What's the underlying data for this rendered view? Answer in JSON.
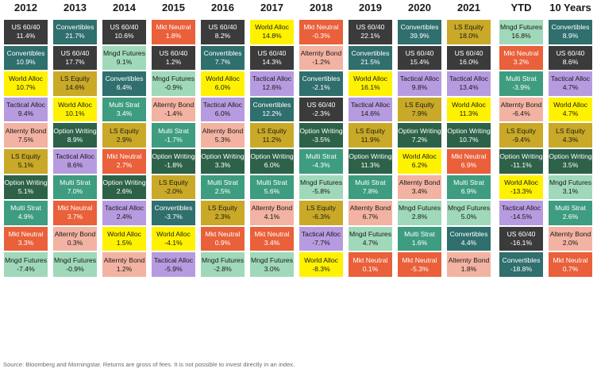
{
  "columns": [
    "2012",
    "2013",
    "2014",
    "2015",
    "2016",
    "2017",
    "2018",
    "2019",
    "2020",
    "2021",
    "YTD",
    "10 Years"
  ],
  "colors": {
    "US 60/40": "#3b3b3b",
    "Convertibles": "#2f6f6d",
    "Mngd Futures": "#9fd9b9",
    "Mkt Neutral": "#e9603a",
    "World Alloc": "#fff200",
    "LS Equity": "#c9a927",
    "Tactical Alloc": "#b79be0",
    "Alternty Bond": "#f3b3a2",
    "Multi Strat": "#3e9c80",
    "Option Writing": "#2d6249"
  },
  "light_text": [
    "US 60/40",
    "Convertibles",
    "Mkt Neutral",
    "Multi Strat",
    "Option Writing"
  ],
  "chart_data": {
    "type": "table",
    "rows_per_column": 10,
    "columns": [
      {
        "year": "2012",
        "cells": [
          {
            "name": "US 60/40",
            "value": "11.4%"
          },
          {
            "name": "Convertibles",
            "value": "10.9%"
          },
          {
            "name": "World Alloc",
            "value": "10.7%"
          },
          {
            "name": "Tactical Alloc",
            "value": "9.4%"
          },
          {
            "name": "Alternty Bond",
            "value": "7.5%"
          },
          {
            "name": "LS Equity",
            "value": "5.1%"
          },
          {
            "name": "Option Writing",
            "value": "5.1%"
          },
          {
            "name": "Multi Strat",
            "value": "4.9%"
          },
          {
            "name": "Mkt Neutral",
            "value": "3.3%"
          },
          {
            "name": "Mngd Futures",
            "value": "-7.4%"
          }
        ]
      },
      {
        "year": "2013",
        "cells": [
          {
            "name": "Convertibles",
            "value": "21.7%"
          },
          {
            "name": "US 60/40",
            "value": "17.7%"
          },
          {
            "name": "LS Equity",
            "value": "14.6%"
          },
          {
            "name": "World Alloc",
            "value": "10.1%"
          },
          {
            "name": "Option Writing",
            "value": "8.9%"
          },
          {
            "name": "Tactical Alloc",
            "value": "8.6%"
          },
          {
            "name": "Multi Strat",
            "value": "7.0%"
          },
          {
            "name": "Mkt Neutral",
            "value": "3.7%"
          },
          {
            "name": "Alternty Bond",
            "value": "0.3%"
          },
          {
            "name": "Mngd Futures",
            "value": "-0.9%"
          }
        ]
      },
      {
        "year": "2014",
        "cells": [
          {
            "name": "US 60/40",
            "value": "10.6%"
          },
          {
            "name": "Mngd Futures",
            "value": "9.1%"
          },
          {
            "name": "Convertibles",
            "value": "6.4%"
          },
          {
            "name": "Multi Strat",
            "value": "3.4%"
          },
          {
            "name": "LS Equity",
            "value": "2.9%"
          },
          {
            "name": "Mkt Neutral",
            "value": "2.7%"
          },
          {
            "name": "Option Writing",
            "value": "2.6%"
          },
          {
            "name": "Tactical Alloc",
            "value": "2.4%"
          },
          {
            "name": "World Alloc",
            "value": "1.5%"
          },
          {
            "name": "Alternty Bond",
            "value": "1.2%"
          }
        ]
      },
      {
        "year": "2015",
        "cells": [
          {
            "name": "Mkt Neutral",
            "value": "1.8%"
          },
          {
            "name": "US 60/40",
            "value": "1.2%"
          },
          {
            "name": "Mngd Futures",
            "value": "-0.9%"
          },
          {
            "name": "Alternty Bond",
            "value": "-1.4%"
          },
          {
            "name": "Multi Strat",
            "value": "-1.7%"
          },
          {
            "name": "Option Writing",
            "value": "-1.8%"
          },
          {
            "name": "LS Equity",
            "value": "-2.0%"
          },
          {
            "name": "Convertibles",
            "value": "-3.7%"
          },
          {
            "name": "World Alloc",
            "value": "-4.1%"
          },
          {
            "name": "Tactical Alloc",
            "value": "-5.9%"
          }
        ]
      },
      {
        "year": "2016",
        "cells": [
          {
            "name": "US 60/40",
            "value": "8.2%"
          },
          {
            "name": "Convertibles",
            "value": "7.7%"
          },
          {
            "name": "World Alloc",
            "value": "6.0%"
          },
          {
            "name": "Tactical Alloc",
            "value": "6.0%"
          },
          {
            "name": "Alternty Bond",
            "value": "5.3%"
          },
          {
            "name": "Option Writing",
            "value": "3.3%"
          },
          {
            "name": "Multi Strat",
            "value": "2.5%"
          },
          {
            "name": "LS Equity",
            "value": "2.3%"
          },
          {
            "name": "Mkt Neutral",
            "value": "0.9%"
          },
          {
            "name": "Mngd Futures",
            "value": "-2.8%"
          }
        ]
      },
      {
        "year": "2017",
        "cells": [
          {
            "name": "World Alloc",
            "value": "14.8%"
          },
          {
            "name": "US 60/40",
            "value": "14.3%"
          },
          {
            "name": "Tactical Alloc",
            "value": "12.6%"
          },
          {
            "name": "Convertibles",
            "value": "12.2%"
          },
          {
            "name": "LS Equity",
            "value": "11.2%"
          },
          {
            "name": "Option Writing",
            "value": "6.0%"
          },
          {
            "name": "Multi Strat",
            "value": "5.6%"
          },
          {
            "name": "Alternty Bond",
            "value": "4.1%"
          },
          {
            "name": "Mkt Neutral",
            "value": "3.4%"
          },
          {
            "name": "Mngd Futures",
            "value": "3.0%"
          }
        ]
      },
      {
        "year": "2018",
        "cells": [
          {
            "name": "Mkt Neutral",
            "value": "-0.3%"
          },
          {
            "name": "Alternty Bond",
            "value": "-1.2%"
          },
          {
            "name": "Convertibles",
            "value": "-2.1%"
          },
          {
            "name": "US 60/40",
            "value": "-2.3%"
          },
          {
            "name": "Option Writing",
            "value": "-3.5%"
          },
          {
            "name": "Multi Strat",
            "value": "-4.3%"
          },
          {
            "name": "Mngd Futures",
            "value": "-5.8%"
          },
          {
            "name": "LS Equity",
            "value": "-6.3%"
          },
          {
            "name": "Tactical Alloc",
            "value": "-7.7%"
          },
          {
            "name": "World Alloc",
            "value": "-8.3%"
          }
        ]
      },
      {
        "year": "2019",
        "cells": [
          {
            "name": "US 60/40",
            "value": "22.1%"
          },
          {
            "name": "Convertibles",
            "value": "21.5%"
          },
          {
            "name": "World Alloc",
            "value": "16.1%"
          },
          {
            "name": "Tactical Alloc",
            "value": "14.6%"
          },
          {
            "name": "LS Equity",
            "value": "11.9%"
          },
          {
            "name": "Option Writing",
            "value": "11.3%"
          },
          {
            "name": "Multi Strat",
            "value": "7.8%"
          },
          {
            "name": "Alternty Bond",
            "value": "6.7%"
          },
          {
            "name": "Mngd Futures",
            "value": "4.7%"
          },
          {
            "name": "Mkt Neutral",
            "value": "0.1%"
          }
        ]
      },
      {
        "year": "2020",
        "cells": [
          {
            "name": "Convertibles",
            "value": "39.9%"
          },
          {
            "name": "US 60/40",
            "value": "15.4%"
          },
          {
            "name": "Tactical Alloc",
            "value": "9.8%"
          },
          {
            "name": "LS Equity",
            "value": "7.9%"
          },
          {
            "name": "Option Writing",
            "value": "7.2%"
          },
          {
            "name": "World Alloc",
            "value": "6.2%"
          },
          {
            "name": "Alternty Bond",
            "value": "3.4%"
          },
          {
            "name": "Mngd Futures",
            "value": "2.8%"
          },
          {
            "name": "Multi Strat",
            "value": "1.6%"
          },
          {
            "name": "Mkt Neutral",
            "value": "-5.3%"
          }
        ]
      },
      {
        "year": "2021",
        "cells": [
          {
            "name": "LS Equity",
            "value": "18.0%"
          },
          {
            "name": "US 60/40",
            "value": "16.0%"
          },
          {
            "name": "Tactical Alloc",
            "value": "13.4%"
          },
          {
            "name": "World Alloc",
            "value": "11.3%"
          },
          {
            "name": "Option Writing",
            "value": "10.7%"
          },
          {
            "name": "Mkt Neutral",
            "value": "6.9%"
          },
          {
            "name": "Multi Strat",
            "value": "6.9%"
          },
          {
            "name": "Mngd Futures",
            "value": "5.0%"
          },
          {
            "name": "Convertibles",
            "value": "4.4%"
          },
          {
            "name": "Alternty Bond",
            "value": "1.8%"
          }
        ]
      },
      {
        "year": "YTD",
        "cells": [
          {
            "name": "Mngd Futures",
            "value": "16.8%"
          },
          {
            "name": "Mkt Neutral",
            "value": "3.2%"
          },
          {
            "name": "Multi Strat",
            "value": "-3.9%"
          },
          {
            "name": "Alternty Bond",
            "value": "-6.4%"
          },
          {
            "name": "LS Equity",
            "value": "-9.4%"
          },
          {
            "name": "Option Writing",
            "value": "-11.1%"
          },
          {
            "name": "World Alloc",
            "value": "-13.3%"
          },
          {
            "name": "Tactical Alloc",
            "value": "-14.5%"
          },
          {
            "name": "US 60/40",
            "value": "-16.1%"
          },
          {
            "name": "Convertibles",
            "value": "-18.8%"
          }
        ]
      },
      {
        "year": "10 Years",
        "cells": [
          {
            "name": "Convertibles",
            "value": "8.9%"
          },
          {
            "name": "US 60/40",
            "value": "8.6%"
          },
          {
            "name": "Tactical Alloc",
            "value": "4.7%"
          },
          {
            "name": "World Alloc",
            "value": "4.7%"
          },
          {
            "name": "LS Equity",
            "value": "4.3%"
          },
          {
            "name": "Option Writing",
            "value": "3.5%"
          },
          {
            "name": "Mngd Futures",
            "value": "3.1%"
          },
          {
            "name": "Multi Strat",
            "value": "2.6%"
          },
          {
            "name": "Alternty Bond",
            "value": "2.0%"
          },
          {
            "name": "Mkt Neutral",
            "value": "0.7%"
          }
        ]
      }
    ]
  },
  "footer": {
    "source": "Source: Bloomberg and Morningstar. Returns are gross of fees. It is not possible to invest directly in an index."
  }
}
